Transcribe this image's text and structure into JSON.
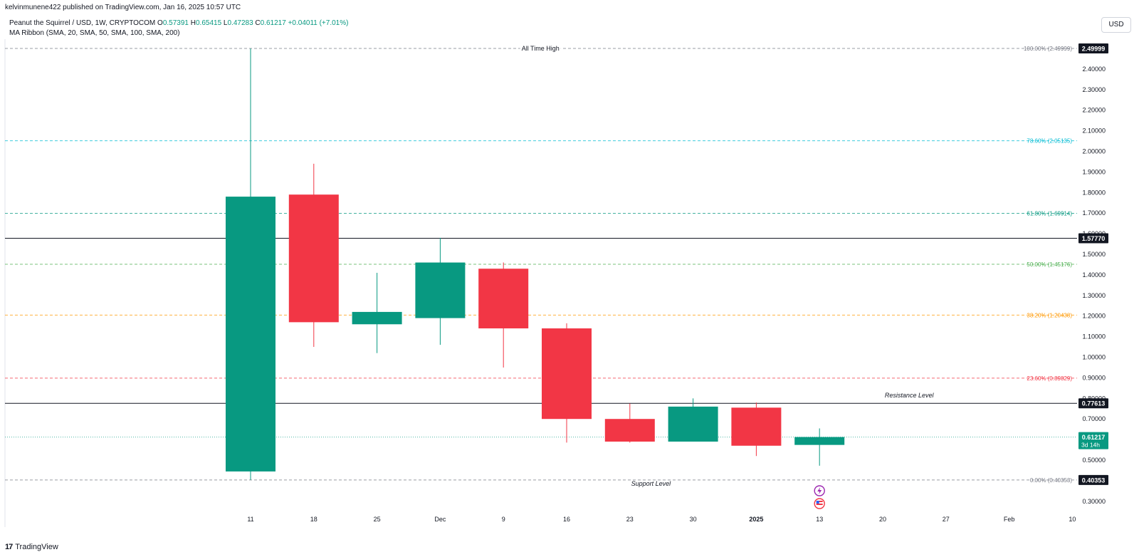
{
  "header": {
    "published_by": "kelvinmunene422 published on TradingView.com, Jan 16, 2025 10:57 UTC"
  },
  "legend": {
    "symbol": "Peanut the Squirrel / USD, 1W, CRYPTOCOM",
    "ohlc": [
      {
        "label": "O",
        "value": "0.57391"
      },
      {
        "label": "H",
        "value": "0.65415"
      },
      {
        "label": "L",
        "value": "0.47283"
      },
      {
        "label": "C",
        "value": "0.61217"
      }
    ],
    "change": "+0.04011 (+7.01%)",
    "indicator": "MA Ribbon (SMA, 20, SMA, 50, SMA, 100, SMA, 200)"
  },
  "toolbar": {
    "currency": "USD"
  },
  "footer": {
    "brand": "TradingView",
    "logo_text": "17"
  },
  "colors": {
    "up": "#089981",
    "down": "#f23645",
    "fib_100": "#787b86",
    "fib_786": "#00bcd4",
    "fib_618": "#089981",
    "fib_50": "#4caf50",
    "fib_382": "#ff9800",
    "fib_236": "#f23645",
    "fib_0": "#787b86"
  },
  "chart_data": {
    "type": "candlestick",
    "title": "Peanut the Squirrel / USD, 1W, CRYPTOCOM",
    "ylim": [
      0.25,
      2.52
    ],
    "yticks": [
      "0.30000",
      "0.50000",
      "0.60000",
      "0.70000",
      "0.80000",
      "0.90000",
      "1.00000",
      "1.10000",
      "1.20000",
      "1.30000",
      "1.40000",
      "1.50000",
      "1.60000",
      "1.70000",
      "1.80000",
      "1.90000",
      "2.00000",
      "2.10000",
      "2.20000",
      "2.30000",
      "2.40000"
    ],
    "xticks": [
      {
        "label": "11",
        "bold": false
      },
      {
        "label": "18",
        "bold": false
      },
      {
        "label": "25",
        "bold": false
      },
      {
        "label": "Dec",
        "bold": false
      },
      {
        "label": "9",
        "bold": false
      },
      {
        "label": "16",
        "bold": false
      },
      {
        "label": "23",
        "bold": false
      },
      {
        "label": "30",
        "bold": false
      },
      {
        "label": "2025",
        "bold": true
      },
      {
        "label": "13",
        "bold": false
      },
      {
        "label": "20",
        "bold": false
      },
      {
        "label": "27",
        "bold": false
      },
      {
        "label": "Feb",
        "bold": false
      },
      {
        "label": "10",
        "bold": false
      }
    ],
    "candles": [
      {
        "x": "11",
        "open": 0.445,
        "high": 2.49999,
        "low": 0.40353,
        "close": 1.78
      },
      {
        "x": "18",
        "open": 1.79,
        "high": 1.94,
        "low": 1.05,
        "close": 1.17
      },
      {
        "x": "25",
        "open": 1.16,
        "high": 1.41,
        "low": 1.02,
        "close": 1.22
      },
      {
        "x": "Dec",
        "open": 1.19,
        "high": 1.58,
        "low": 1.06,
        "close": 1.46
      },
      {
        "x": "9",
        "open": 1.43,
        "high": 1.46,
        "low": 0.95,
        "close": 1.14
      },
      {
        "x": "16",
        "open": 1.14,
        "high": 1.165,
        "low": 0.585,
        "close": 0.7
      },
      {
        "x": "23",
        "open": 0.7,
        "high": 0.775,
        "low": 0.585,
        "close": 0.59
      },
      {
        "x": "30",
        "open": 0.59,
        "high": 0.8,
        "low": 0.59,
        "close": 0.76
      },
      {
        "x": "2025",
        "open": 0.755,
        "high": 0.78,
        "low": 0.52,
        "close": 0.57
      },
      {
        "x": "13",
        "open": 0.57391,
        "high": 0.65415,
        "low": 0.47283,
        "close": 0.61217
      }
    ],
    "fib_levels": [
      {
        "label": "100.00% (2.49999)",
        "value": 2.49999,
        "color_key": "fib_100"
      },
      {
        "label": "78.60% (2.05135)",
        "value": 2.05135,
        "color_key": "fib_786"
      },
      {
        "label": "61.80% (1.69914)",
        "value": 1.69914,
        "color_key": "fib_618"
      },
      {
        "label": "50.00% (1.45176)",
        "value": 1.45176,
        "color_key": "fib_50"
      },
      {
        "label": "38.20% (1.20438)",
        "value": 1.20438,
        "color_key": "fib_382"
      },
      {
        "label": "23.60% (0.89829)",
        "value": 0.89829,
        "color_key": "fib_236"
      },
      {
        "label": "0.00% (0.40353)",
        "value": 0.40353,
        "color_key": "fib_0"
      }
    ],
    "horizontal_lines": [
      {
        "value": 1.5777,
        "price_label": "1.57770"
      },
      {
        "value": 0.77613,
        "price_label": "0.77613"
      }
    ],
    "price_badges": [
      {
        "value": 2.49999,
        "label": "2.49999"
      },
      {
        "value": 0.40353,
        "label": "0.40353"
      }
    ],
    "current_price": {
      "value": 0.61217,
      "label": "0.61217",
      "countdown": "3d 14h"
    },
    "annotations": [
      {
        "text": "All Time High",
        "value": 2.49999,
        "x": "9",
        "style": "normal"
      },
      {
        "text": "Resistance Level",
        "value": 0.77613,
        "x": "13",
        "style": "italic"
      },
      {
        "text": "Support Level",
        "value": 0.40353,
        "x": "2025",
        "style": "italic"
      }
    ],
    "event_icons": [
      {
        "name": "lightning-event-icon",
        "x": "13"
      },
      {
        "name": "us-flag-event-icon",
        "x": "13"
      }
    ],
    "legend_placement": "top-left",
    "grid": false
  }
}
